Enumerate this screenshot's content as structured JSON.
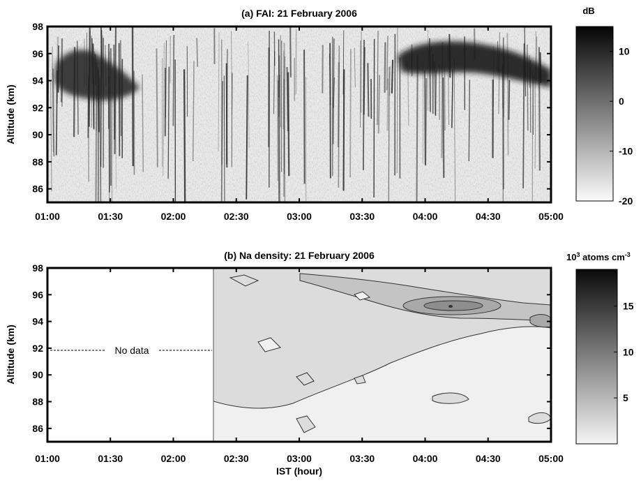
{
  "chart_data": [
    {
      "type": "heatmap",
      "title": "(a) FAI: 21 February 2006",
      "ylabel": "Altitude (km)",
      "xlabel": "",
      "xlim": [
        "01:00",
        "05:00"
      ],
      "ylim": [
        85,
        98
      ],
      "x_ticks": [
        "01:00",
        "01:30",
        "02:00",
        "02:30",
        "03:00",
        "03:30",
        "04:00",
        "04:30",
        "05:00"
      ],
      "y_ticks": [
        86,
        88,
        90,
        92,
        94,
        96,
        98
      ],
      "colorbar": {
        "label": "dB",
        "range": [
          -20,
          15
        ],
        "ticks": [
          10,
          0,
          -10,
          -20
        ]
      },
      "features": [
        {
          "desc_time": [
            "01:05",
            "01:45"
          ],
          "altitude": [
            93,
            97
          ],
          "peak_altitude": 94.0,
          "strength_db": 10
        },
        {
          "desc_time": [
            "03:50",
            "05:00"
          ],
          "altitude": [
            93,
            96.5
          ],
          "peak_altitude": 95.5,
          "strength_db": 12
        }
      ],
      "grid": false
    },
    {
      "type": "heatmap",
      "title": "(b) Na density: 21 February 2006",
      "ylabel": "Altitude (km)",
      "xlabel": "IST (hour)",
      "xlim": [
        "01:00",
        "05:00"
      ],
      "ylim": [
        85,
        98
      ],
      "x_ticks": [
        "01:00",
        "01:30",
        "02:00",
        "02:30",
        "03:00",
        "03:30",
        "04:00",
        "04:30",
        "05:00"
      ],
      "y_ticks": [
        86,
        88,
        90,
        92,
        94,
        96,
        98
      ],
      "colorbar": {
        "label": "10",
        "label_exp": "3",
        "label_rest": " atoms cm",
        "label_exp2": "-3",
        "range": [
          0,
          19
        ],
        "ticks": [
          15,
          10,
          5
        ]
      },
      "no_data_label": "No data",
      "no_data_range": [
        "01:00",
        "02:20"
      ],
      "no_data_altitude": 92,
      "peak": {
        "time": "04:13",
        "altitude": 95.1,
        "density": 16
      },
      "grid": false
    }
  ],
  "colors": {
    "axis": "#000000",
    "contour_line": "#333333",
    "background_fill": "#f0f0f0"
  }
}
